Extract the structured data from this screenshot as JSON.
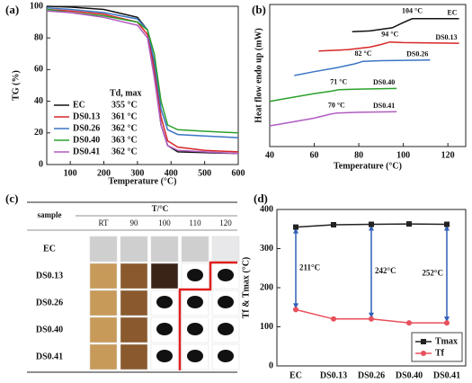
{
  "chart_data": [
    {
      "type": "line",
      "label": "(a)",
      "x_label": "Temperature (°C)",
      "y_label": "TG (%)",
      "xlim": [
        30,
        600
      ],
      "xticks": [
        100,
        200,
        300,
        400,
        500,
        600
      ],
      "ylim": [
        0,
        100
      ],
      "yticks": [
        0,
        20,
        40,
        60,
        80,
        100
      ],
      "legend_title": "Td, max",
      "x": [
        30,
        100,
        200,
        300,
        330,
        350,
        370,
        390,
        420,
        500,
        600
      ],
      "series": [
        {
          "name": "EC",
          "color": "#111111",
          "annotation": "355 °C",
          "values": [
            100,
            99.5,
            98,
            93,
            85,
            60,
            25,
            12,
            8,
            7.5,
            7
          ]
        },
        {
          "name": "DS0.13",
          "color": "#d62728",
          "annotation": "361 °C",
          "values": [
            98,
            97,
            95,
            90,
            82,
            60,
            30,
            15,
            11,
            9,
            8
          ]
        },
        {
          "name": "DS0.26",
          "color": "#3b75c4",
          "annotation": "362 °C",
          "values": [
            99,
            98,
            96,
            92,
            85,
            65,
            35,
            22,
            19,
            18,
            17
          ]
        },
        {
          "name": "DS0.40",
          "color": "#2ca02c",
          "annotation": "363 °C",
          "values": [
            98,
            96,
            94,
            90,
            85,
            70,
            40,
            25,
            22,
            21,
            20
          ]
        },
        {
          "name": "DS0.41",
          "color": "#b05cc0",
          "annotation": "362 °C",
          "values": [
            97,
            96,
            93,
            88,
            80,
            55,
            25,
            12,
            9,
            8,
            7
          ]
        }
      ]
    },
    {
      "type": "line",
      "label": "(b)",
      "x_label": "Temperature (°C)",
      "y_label": "Heat flow endo up (mW)",
      "xlim": [
        40,
        128
      ],
      "xticks": [
        40,
        60,
        80,
        100,
        120
      ],
      "ylim": [
        0,
        11
      ],
      "series": [
        {
          "name": "EC",
          "color": "#111111",
          "tg": {
            "value": 104,
            "label": "104 °C"
          },
          "x": [
            77,
            85,
            95,
            100,
            104,
            110,
            125
          ],
          "values": [
            8.9,
            8.95,
            9.2,
            9.6,
            9.9,
            9.9,
            9.9
          ]
        },
        {
          "name": "DS0.13",
          "color": "#d62728",
          "tg": {
            "value": 94,
            "label": "94 °C"
          },
          "x": [
            62,
            75,
            85,
            90,
            94,
            100,
            125
          ],
          "values": [
            7.4,
            7.5,
            7.7,
            7.9,
            8.1,
            8.05,
            8.0
          ]
        },
        {
          "name": "DS0.26",
          "color": "#3b75c4",
          "tg": {
            "value": 82,
            "label": "82 °C"
          },
          "x": [
            51,
            60,
            70,
            78,
            82,
            90,
            112
          ],
          "values": [
            5.5,
            5.8,
            6.1,
            6.4,
            6.6,
            6.65,
            6.7
          ]
        },
        {
          "name": "DS0.40",
          "color": "#2ca02c",
          "tg": {
            "value": 71,
            "label": "71 °C"
          },
          "x": [
            40,
            50,
            60,
            68,
            71,
            80,
            97
          ],
          "values": [
            3.5,
            3.8,
            4.1,
            4.3,
            4.4,
            4.45,
            4.5
          ]
        },
        {
          "name": "DS0.41",
          "color": "#b05cc0",
          "tg": {
            "value": 70,
            "label": "70 °C"
          },
          "x": [
            40,
            50,
            60,
            67,
            70,
            80,
            97
          ],
          "values": [
            1.6,
            1.9,
            2.2,
            2.5,
            2.6,
            2.65,
            2.7
          ]
        }
      ]
    },
    {
      "type": "line",
      "label": "(d)",
      "y_label": "Tf & Tmax (°C)",
      "categories": [
        "EC",
        "DS0.13",
        "DS0.26",
        "DS0.40",
        "DS0.41"
      ],
      "ylim": [
        0,
        400
      ],
      "yticks": [
        0,
        100,
        200,
        300,
        400
      ],
      "series": [
        {
          "name": "Tmax",
          "color": "#222222",
          "marker": "square",
          "values": [
            355,
            361,
            362,
            363,
            362
          ]
        },
        {
          "name": "Tf",
          "color": "#e8505b",
          "marker": "circle",
          "values": [
            144,
            120,
            120,
            110,
            110
          ]
        }
      ],
      "annotations": [
        {
          "at": "EC",
          "label": "211°C"
        },
        {
          "at": "DS0.26",
          "label": "242°C"
        },
        {
          "at": "DS0.41",
          "label": "252°C"
        }
      ]
    }
  ],
  "photo_table": {
    "label": "(c)",
    "corner": "sample",
    "header": "T/°C",
    "columns": [
      "RT",
      "90",
      "100",
      "110",
      "120"
    ],
    "rows": [
      "EC",
      "DS0.13",
      "DS0.26",
      "DS0.40",
      "DS0.41"
    ]
  }
}
